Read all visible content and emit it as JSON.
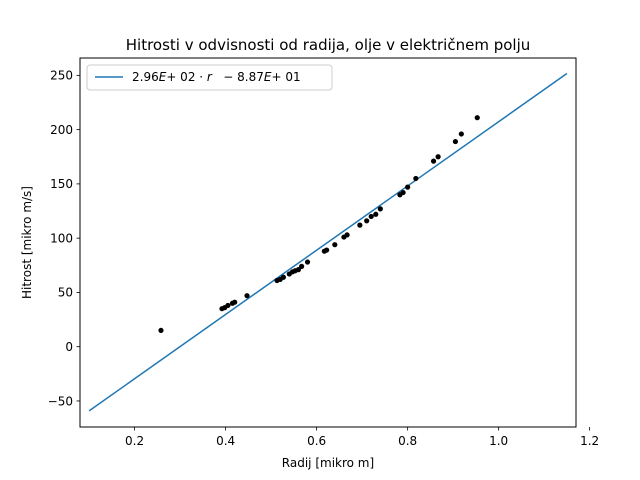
{
  "chart_data": {
    "type": "scatter",
    "title": "Hitrosti v odvisnosti od radija, olje v električnem polju",
    "xlabel": "Radij [mikro m]",
    "ylabel": "Hitrost [mikro m/s]",
    "xlim": [
      0.08,
      1.17
    ],
    "ylim": [
      -74,
      266
    ],
    "xticks": [
      0.2,
      0.4,
      0.6,
      0.8,
      1.0,
      1.2
    ],
    "xtick_labels": [
      "0.2",
      "0.4",
      "0.6",
      "0.8",
      "1.0",
      "1.2"
    ],
    "yticks": [
      -50,
      0,
      50,
      100,
      150,
      200,
      250
    ],
    "ytick_labels": [
      "−50",
      "0",
      "50",
      "100",
      "150",
      "200",
      "250"
    ],
    "grid": false,
    "legend": {
      "placement": "top-left",
      "entries": [
        "2.96E+02·r  −8.87E+01"
      ]
    },
    "fit_line": {
      "label_parts": [
        "2.96",
        "E",
        "+ 02 · ",
        "r",
        "   − 8.87",
        "E",
        "+ 01"
      ],
      "slope": 296,
      "intercept": -88.7,
      "x_range": [
        0.1,
        1.15
      ],
      "color": "#1f77b4"
    },
    "series": [
      {
        "color": "#000000",
        "points": [
          [
            0.258,
            15
          ],
          [
            0.392,
            35
          ],
          [
            0.398,
            36
          ],
          [
            0.405,
            38
          ],
          [
            0.415,
            40
          ],
          [
            0.42,
            41
          ],
          [
            0.447,
            47
          ],
          [
            0.513,
            61
          ],
          [
            0.52,
            62
          ],
          [
            0.527,
            64
          ],
          [
            0.54,
            67
          ],
          [
            0.547,
            69
          ],
          [
            0.553,
            70
          ],
          [
            0.56,
            71
          ],
          [
            0.567,
            74
          ],
          [
            0.58,
            78
          ],
          [
            0.617,
            88
          ],
          [
            0.622,
            89
          ],
          [
            0.64,
            94
          ],
          [
            0.66,
            101
          ],
          [
            0.667,
            103
          ],
          [
            0.695,
            112
          ],
          [
            0.71,
            116
          ],
          [
            0.72,
            120
          ],
          [
            0.73,
            122
          ],
          [
            0.74,
            127
          ],
          [
            0.783,
            140
          ],
          [
            0.79,
            142
          ],
          [
            0.8,
            147
          ],
          [
            0.818,
            155
          ],
          [
            0.857,
            171
          ],
          [
            0.867,
            175
          ],
          [
            0.905,
            189
          ],
          [
            0.918,
            196
          ],
          [
            0.953,
            211
          ]
        ]
      }
    ]
  }
}
